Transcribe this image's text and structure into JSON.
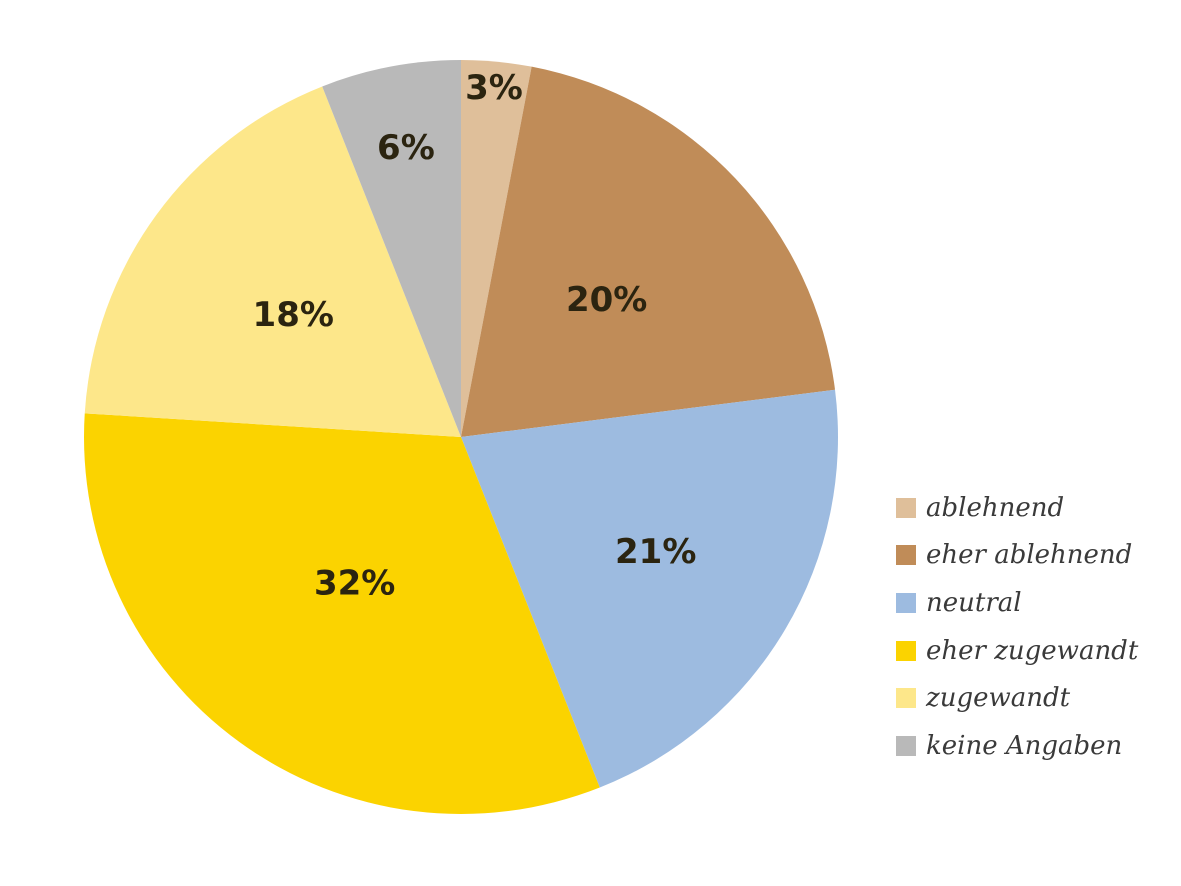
{
  "chart_data": {
    "type": "pie",
    "title": "",
    "slices": [
      {
        "label": "ablehnend",
        "value": 3,
        "display": "3%",
        "color": "#dfbf9a"
      },
      {
        "label": "eher ablehnend",
        "value": 20,
        "display": "20%",
        "color": "#c08c58"
      },
      {
        "label": "neutral",
        "value": 21,
        "display": "21%",
        "color": "#9dbbe0"
      },
      {
        "label": "eher zugewandt",
        "value": 32,
        "display": "32%",
        "color": "#fbd300"
      },
      {
        "label": "zugewandt",
        "value": 18,
        "display": "18%",
        "color": "#fde78a"
      },
      {
        "label": "keine Angaben",
        "value": 6,
        "display": "6%",
        "color": "#b9b9b9"
      }
    ],
    "start_angle": "12 o'clock",
    "direction": "clockwise",
    "legend_position": "right-bottom"
  }
}
